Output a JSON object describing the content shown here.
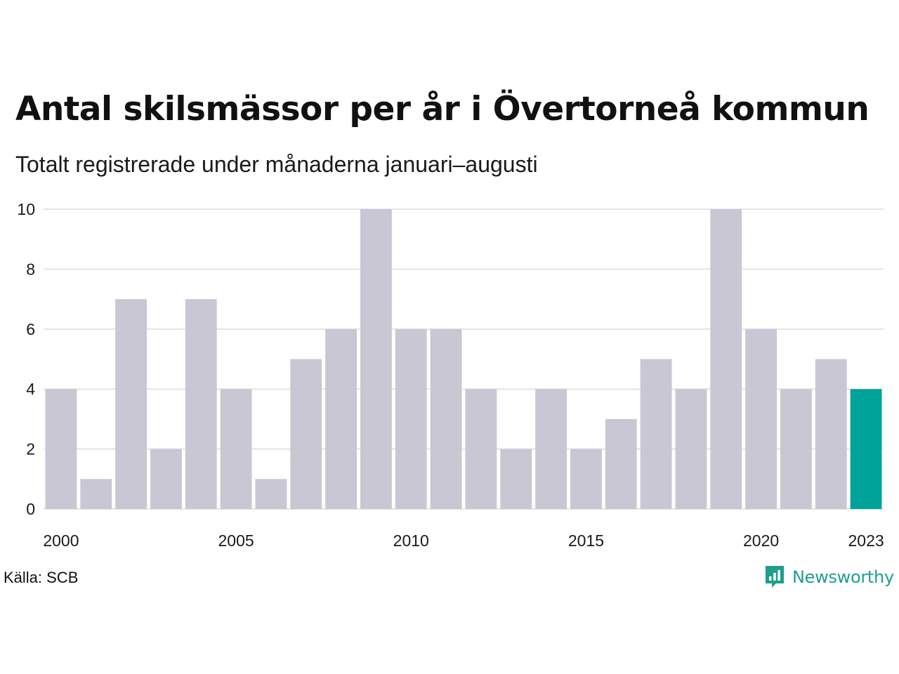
{
  "title": "Antal skilsmässor per år i Övertorneå kommun",
  "subtitle": "Totalt registrerade under månaderna januari–augusti",
  "source": "Källa: SCB",
  "brand": {
    "name": "Newsworthy",
    "icon": "newsworthy-logo-icon",
    "color": "#1f9e8e"
  },
  "colors": {
    "bar": "#c8c7d3",
    "highlight": "#00a39a",
    "grid": "#e3e3e6"
  },
  "chart_data": {
    "type": "bar",
    "categories": [
      "2000",
      "2001",
      "2002",
      "2003",
      "2004",
      "2005",
      "2006",
      "2007",
      "2008",
      "2009",
      "2010",
      "2011",
      "2012",
      "2013",
      "2014",
      "2015",
      "2016",
      "2017",
      "2018",
      "2019",
      "2020",
      "2021",
      "2022",
      "2023"
    ],
    "values": [
      4,
      1,
      7,
      2,
      7,
      4,
      1,
      5,
      6,
      10,
      6,
      6,
      4,
      2,
      4,
      2,
      3,
      5,
      4,
      10,
      6,
      4,
      5,
      4
    ],
    "highlight": "2023",
    "ylim": [
      0,
      10
    ],
    "yticks": [
      "0",
      "2",
      "4",
      "6",
      "8",
      "10"
    ],
    "xticks": [
      "2000",
      "2005",
      "2010",
      "2015",
      "2020",
      "2023"
    ],
    "grid": true
  }
}
